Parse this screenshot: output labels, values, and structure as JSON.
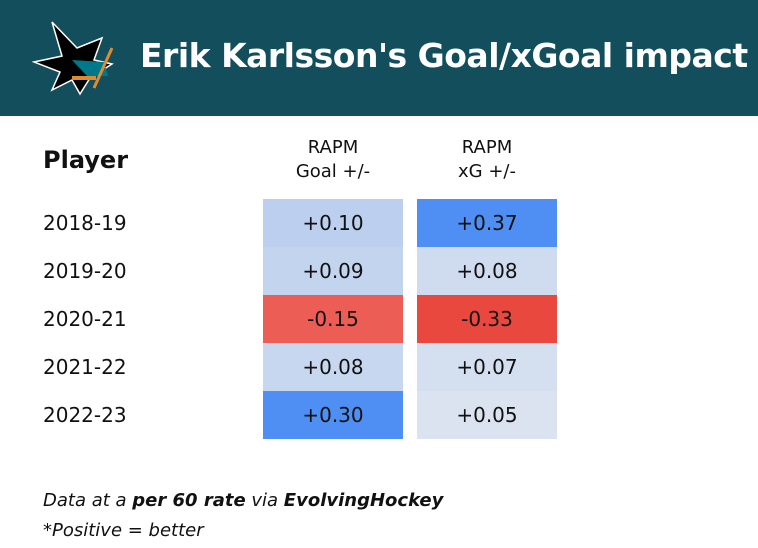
{
  "header": {
    "title": "Erik Karlsson's Goal/xGoal impact",
    "logo": "San Jose Sharks"
  },
  "table": {
    "player_header": "Player",
    "col1_line1": "RAPM",
    "col1_line2": "Goal +/-",
    "col2_line1": "RAPM",
    "col2_line2": "xG +/-",
    "rows": [
      {
        "season": "2018-19",
        "goal": "+0.10",
        "xg": "+0.37",
        "goal_color": "#bccfee",
        "xg_color": "#4f8ef2"
      },
      {
        "season": "2019-20",
        "goal": "+0.09",
        "xg": "+0.08",
        "goal_color": "#c3d4ef",
        "xg_color": "#cfdbef"
      },
      {
        "season": "2020-21",
        "goal": "-0.15",
        "xg": "-0.33",
        "goal_color": "#ec5d55",
        "xg_color": "#e8483d"
      },
      {
        "season": "2021-22",
        "goal": "+0.08",
        "xg": "+0.07",
        "goal_color": "#c8d7f0",
        "xg_color": "#d4dff0"
      },
      {
        "season": "2022-23",
        "goal": "+0.30",
        "xg": "+0.05",
        "goal_color": "#4f8ef2",
        "xg_color": "#dbe3f0"
      }
    ]
  },
  "footer": {
    "prefix": "Data at a ",
    "bold1": "per 60 rate",
    "mid": " via ",
    "bold2": "EvolvingHockey",
    "note": "*Positive = better"
  }
}
